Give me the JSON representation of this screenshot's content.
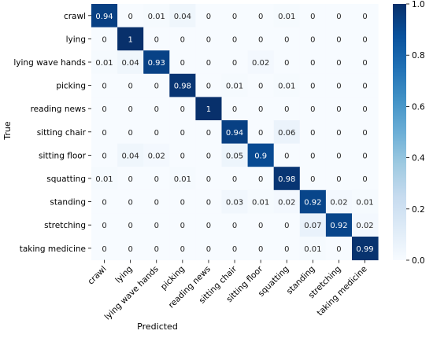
{
  "chart_data": {
    "type": "heatmap",
    "title": "",
    "xlabel": "Predicted",
    "ylabel": "True",
    "categories": [
      "crawl",
      "lying",
      "lying wave hands",
      "picking",
      "reading news",
      "sitting chair",
      "sitting floor",
      "squatting",
      "standing",
      "stretching",
      "taking medicine"
    ],
    "matrix": [
      [
        0.94,
        0,
        0.01,
        0.04,
        0,
        0,
        0,
        0.01,
        0,
        0,
        0
      ],
      [
        0,
        1,
        0,
        0,
        0,
        0,
        0,
        0,
        0,
        0,
        0
      ],
      [
        0.01,
        0.04,
        0.93,
        0,
        0,
        0,
        0.02,
        0,
        0,
        0,
        0
      ],
      [
        0,
        0,
        0,
        0.98,
        0,
        0.01,
        0,
        0.01,
        0,
        0,
        0
      ],
      [
        0,
        0,
        0,
        0,
        1,
        0,
        0,
        0,
        0,
        0,
        0
      ],
      [
        0,
        0,
        0,
        0,
        0,
        0.94,
        0,
        0.06,
        0,
        0,
        0
      ],
      [
        0,
        0.04,
        0.02,
        0,
        0,
        0.05,
        0.9,
        0,
        0,
        0,
        0
      ],
      [
        0.01,
        0,
        0,
        0.01,
        0,
        0,
        0,
        0.98,
        0,
        0,
        0
      ],
      [
        0,
        0,
        0,
        0,
        0,
        0.03,
        0.01,
        0.02,
        0.92,
        0.02,
        0.01
      ],
      [
        0,
        0,
        0,
        0,
        0,
        0,
        0,
        0,
        0.07,
        0.92,
        0.02
      ],
      [
        0,
        0,
        0,
        0,
        0,
        0,
        0,
        0,
        0.01,
        0,
        0.99
      ]
    ],
    "colorbar": {
      "range": [
        0.0,
        1.0
      ],
      "ticks": [
        "0.0",
        "0.2",
        "0.4",
        "0.6",
        "0.8",
        "1.0"
      ],
      "colormap": "Blues",
      "light_color": "#f7fbff",
      "dark_color": "#08306b"
    },
    "grid": false,
    "legend": "none"
  }
}
